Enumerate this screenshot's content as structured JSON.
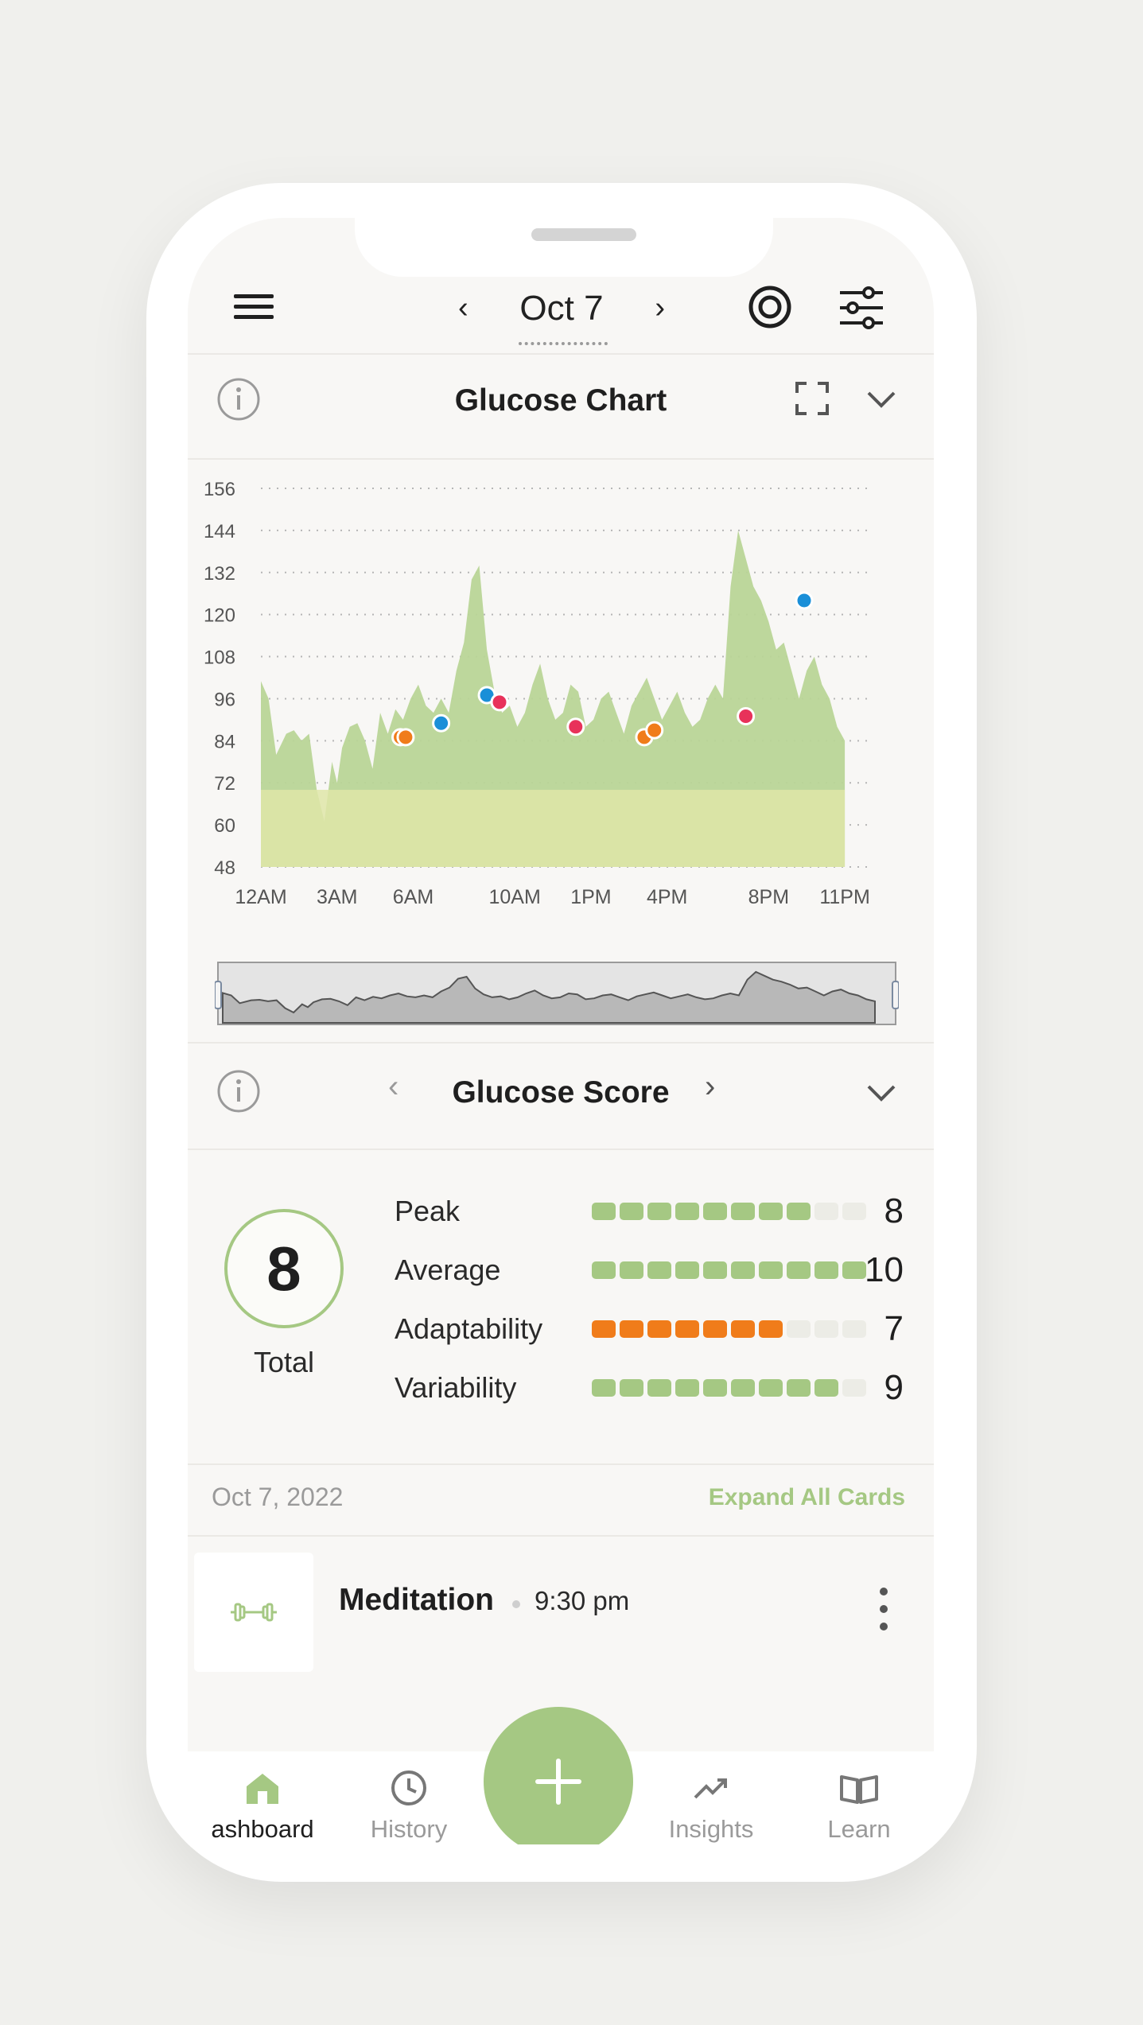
{
  "header": {
    "date": "Oct 7",
    "prev_icon": "chevron-left-icon",
    "next_icon": "chevron-right-icon"
  },
  "glucose_chart": {
    "title": "Glucose Chart"
  },
  "chart_data": {
    "type": "area",
    "x_unit": "hour of day",
    "y_ticks": [
      48,
      60,
      72,
      84,
      96,
      108,
      120,
      132,
      144,
      156
    ],
    "x_tick_labels": [
      "12AM",
      "3AM",
      "6AM",
      "10AM",
      "1PM",
      "4PM",
      "8PM",
      "11PM"
    ],
    "x_tick_hours": [
      0,
      3,
      6,
      10,
      13,
      16,
      20,
      23
    ],
    "ylim": [
      48,
      156
    ],
    "xlim": [
      0,
      24
    ],
    "target_band": [
      48,
      70
    ],
    "grid": true,
    "series": [
      {
        "x": [
          0,
          0.3,
          0.6,
          1.0,
          1.3,
          1.6,
          1.9,
          2.2,
          2.5,
          2.8,
          3.0,
          3.2,
          3.5,
          3.8,
          4.1,
          4.4,
          4.7,
          5.0,
          5.3,
          5.6,
          5.9,
          6.2,
          6.5,
          6.8,
          7.1,
          7.4,
          7.7,
          8.0,
          8.3,
          8.6,
          8.9,
          9.2,
          9.5,
          9.8,
          10.1,
          10.4,
          10.7,
          11.0,
          11.3,
          11.6,
          11.9,
          12.2,
          12.5,
          12.8,
          13.1,
          13.4,
          13.7,
          14.0,
          14.3,
          14.6,
          14.9,
          15.2,
          15.5,
          15.8,
          16.1,
          16.4,
          16.7,
          17.0,
          17.3,
          17.6,
          17.9,
          18.2,
          18.5,
          18.8,
          19.1,
          19.4,
          19.7,
          20.0,
          20.3,
          20.6,
          20.9,
          21.2,
          21.5,
          21.8,
          22.1,
          22.4,
          22.7,
          23.0
        ],
        "y": [
          101,
          96,
          80,
          86,
          87,
          84,
          86,
          70,
          61,
          78,
          72,
          82,
          88,
          89,
          84,
          76,
          92,
          86,
          93,
          90,
          96,
          100,
          94,
          92,
          96,
          92,
          104,
          112,
          130,
          134,
          110,
          98,
          92,
          94,
          88,
          92,
          100,
          106,
          96,
          90,
          92,
          100,
          98,
          88,
          90,
          96,
          98,
          92,
          86,
          94,
          98,
          102,
          96,
          90,
          94,
          98,
          92,
          88,
          90,
          96,
          100,
          96,
          128,
          144,
          136,
          128,
          124,
          118,
          110,
          112,
          104,
          96,
          104,
          108,
          100,
          96,
          88,
          84
        ]
      }
    ],
    "markers": [
      {
        "x": 5.5,
        "y": 85,
        "color": "#f07c1a"
      },
      {
        "x": 5.7,
        "y": 85,
        "color": "#f07c1a"
      },
      {
        "x": 7.1,
        "y": 89,
        "color": "#1a8fd8"
      },
      {
        "x": 8.9,
        "y": 97,
        "color": "#1a8fd8"
      },
      {
        "x": 9.4,
        "y": 95,
        "color": "#e8325a"
      },
      {
        "x": 12.4,
        "y": 88,
        "color": "#e8325a"
      },
      {
        "x": 15.1,
        "y": 85,
        "color": "#f07c1a"
      },
      {
        "x": 15.5,
        "y": 87,
        "color": "#f07c1a"
      },
      {
        "x": 19.1,
        "y": 91,
        "color": "#e8325a"
      },
      {
        "x": 21.4,
        "y": 124,
        "color": "#1a8fd8"
      }
    ],
    "colors": {
      "area": "#b9d597",
      "band": "#dfe6a8",
      "grid": "#b6b6b6"
    }
  },
  "glucose_score": {
    "title": "Glucose Score",
    "total_value": "8",
    "total_label": "Total",
    "max_segments": 10,
    "metrics": [
      {
        "label": "Peak",
        "value": "8",
        "filled": 8,
        "color": "#a5c883"
      },
      {
        "label": "Average",
        "value": "10",
        "filled": 10,
        "color": "#a5c883"
      },
      {
        "label": "Adaptability",
        "value": "7",
        "filled": 7,
        "color": "#f07c1a"
      },
      {
        "label": "Variability",
        "value": "9",
        "filled": 9,
        "color": "#a5c883"
      }
    ]
  },
  "day": {
    "date_label": "Oct 7, 2022",
    "expand_all": "Expand All Cards"
  },
  "card": {
    "title": "Meditation",
    "time": "9:30 pm",
    "icon": "dumbbell-icon"
  },
  "tabs": [
    {
      "label": "ashboard",
      "icon": "home-icon",
      "active": true
    },
    {
      "label": "History",
      "icon": "clock-icon",
      "active": false
    },
    {
      "label": "Insights",
      "icon": "trend-icon",
      "active": false
    },
    {
      "label": "Learn",
      "icon": "book-icon",
      "active": false
    }
  ],
  "fab_icon": "plus-icon",
  "accent_color": "#a5c883"
}
